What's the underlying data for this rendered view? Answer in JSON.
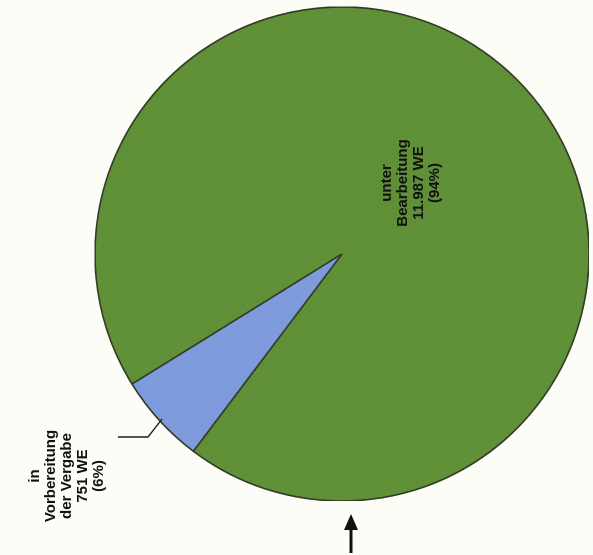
{
  "chart_data": {
    "type": "pie",
    "title": "",
    "slices": [
      {
        "label_lines": [
          "unter",
          "Bearbeitung",
          "11.987 WE",
          "(94%)"
        ],
        "value": 11987,
        "percent": 94,
        "color": "#5c9032"
      },
      {
        "label_lines": [
          "in",
          "Vorbereitung",
          "der Vergabe",
          "751 WE",
          "(6%)"
        ],
        "value": 751,
        "percent": 6,
        "color": "#7f9be8"
      }
    ],
    "legend": "none",
    "label_orientation": "rotated-90-ccw"
  }
}
